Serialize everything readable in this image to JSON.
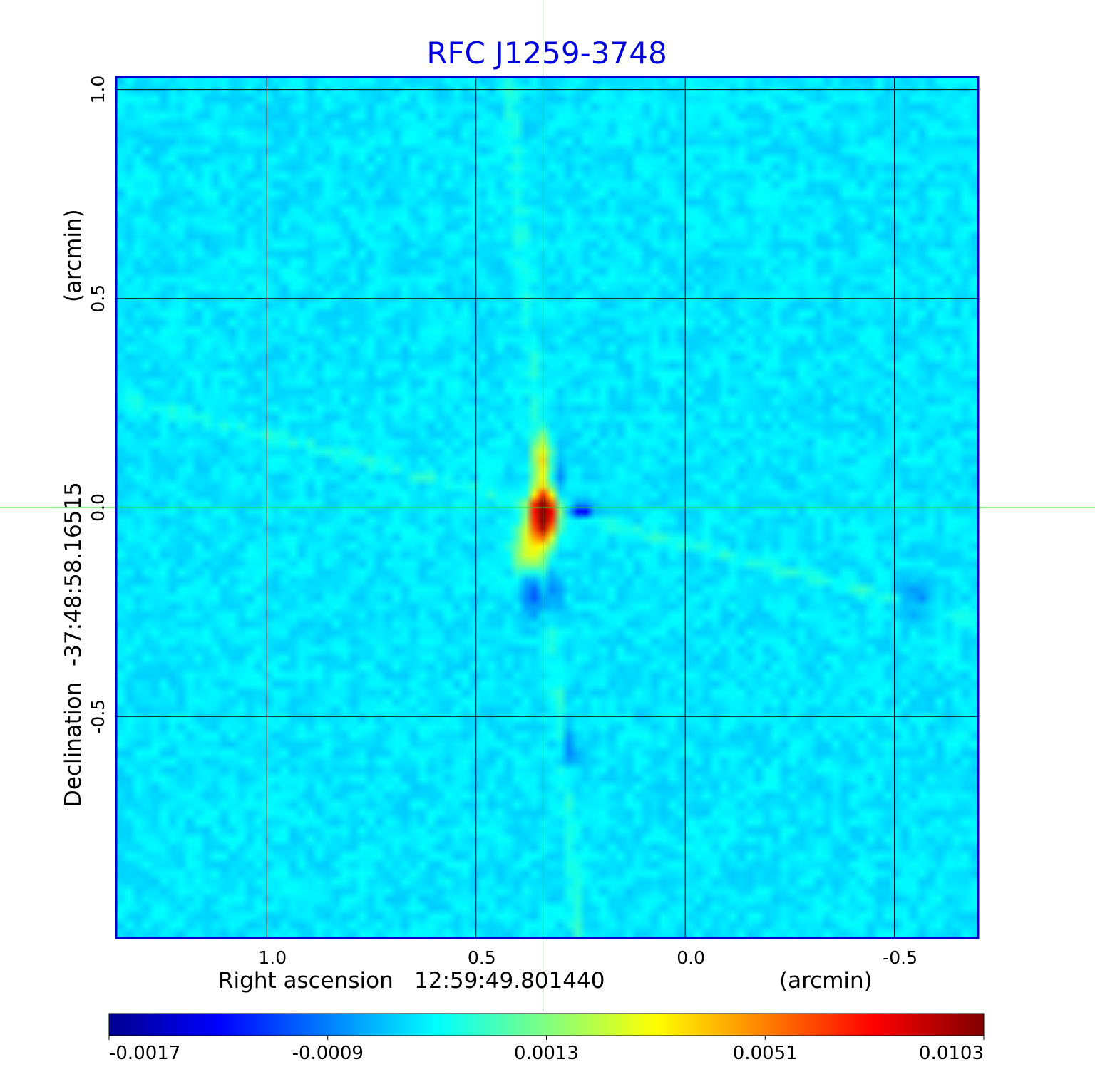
{
  "chart_data": {
    "type": "heatmap",
    "title": "RFC J1259-3748",
    "xlabel": {
      "prefix": "Right ascension",
      "center": "12:59:49.801440",
      "unit": "(arcmin)"
    },
    "ylabel": {
      "prefix": "Declination",
      "center": "-37:48:58.16515",
      "unit": "(arcmin)"
    },
    "xlim": [
      1.36,
      -0.7
    ],
    "ylim": [
      -1.03,
      1.03
    ],
    "x_ticks": [
      1.0,
      0.5,
      0.0,
      -0.5
    ],
    "x_tick_labels": [
      "1.0",
      "0.5",
      "0.0",
      "-0.5"
    ],
    "y_ticks": [
      -0.5,
      0.0,
      0.5,
      1.0
    ],
    "y_tick_labels": [
      "-0.5",
      "0.0",
      "0.5",
      "1.0"
    ],
    "grid": true,
    "crosshair": {
      "x": 0.34,
      "y": 0.0,
      "color": "#22dd22"
    },
    "colormap": "jet",
    "colorbar": {
      "orientation": "horizontal",
      "position": "bottom",
      "min": -0.0017,
      "max": 0.0103,
      "tick_labels": [
        "-0.0017",
        "-0.0009",
        "0.0013",
        "0.0051",
        "0.0103"
      ]
    },
    "background_value": 0.0,
    "features": [
      {
        "kind": "peak",
        "x": 0.34,
        "y": 0.0,
        "sigma_x": 0.018,
        "sigma_y": 0.03,
        "value": 0.0103
      },
      {
        "kind": "peak",
        "x": 0.34,
        "y": -0.04,
        "sigma_x": 0.02,
        "sigma_y": 0.03,
        "value": 0.006
      },
      {
        "kind": "peak",
        "x": 0.34,
        "y": 0.11,
        "sigma_x": 0.015,
        "sigma_y": 0.04,
        "value": 0.0035
      },
      {
        "kind": "peak",
        "x": 0.37,
        "y": -0.1,
        "sigma_x": 0.025,
        "sigma_y": 0.04,
        "value": 0.003
      },
      {
        "kind": "trough",
        "x": 0.25,
        "y": -0.01,
        "sigma_x": 0.02,
        "sigma_y": 0.012,
        "value": -0.0017
      },
      {
        "kind": "trough",
        "x": 0.37,
        "y": -0.2,
        "sigma_x": 0.015,
        "sigma_y": 0.04,
        "value": -0.0014
      },
      {
        "kind": "trough",
        "x": 0.31,
        "y": 0.08,
        "sigma_x": 0.015,
        "sigma_y": 0.04,
        "value": -0.0012
      },
      {
        "kind": "trough",
        "x": 0.32,
        "y": -0.2,
        "sigma_x": 0.015,
        "sigma_y": 0.04,
        "value": -0.0012
      },
      {
        "kind": "trough",
        "x": 0.28,
        "y": -0.58,
        "sigma_x": 0.015,
        "sigma_y": 0.03,
        "value": -0.001
      },
      {
        "kind": "trough",
        "x": -0.55,
        "y": -0.22,
        "sigma_x": 0.03,
        "sigma_y": 0.03,
        "value": -0.0008
      }
    ]
  }
}
